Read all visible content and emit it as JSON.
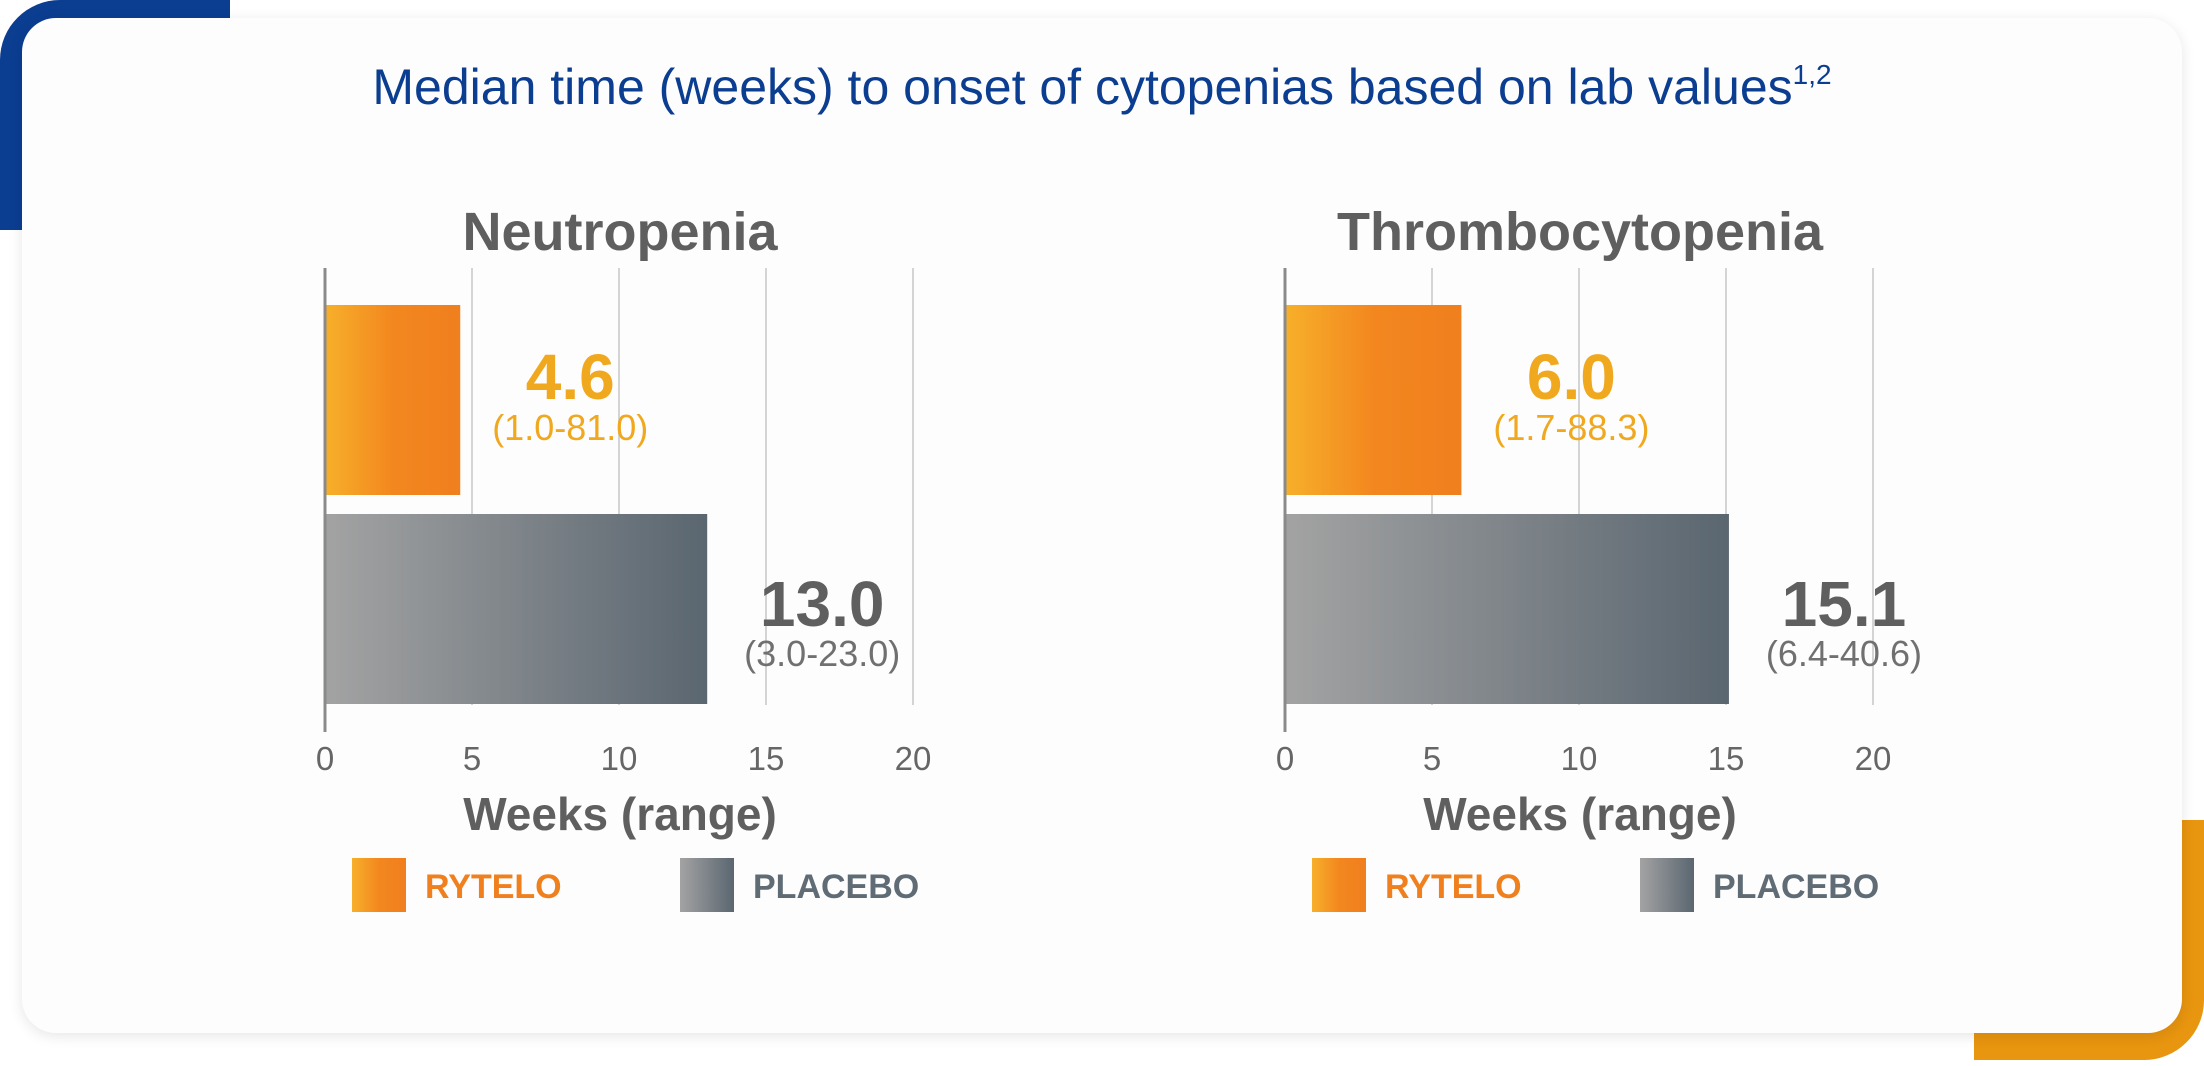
{
  "title": {
    "text": "Median time (weeks) to onset of cytopenias based on lab values",
    "sup": "1,2"
  },
  "colors": {
    "title": "#0b3d91",
    "panel_title": "#5f5f5f",
    "rytelo": "#f07f1e",
    "rytelo_label": "#f0a81e",
    "placebo": "#5f6b75",
    "placebo_value": "#5f5f5f",
    "placebo_range": "#707070",
    "grid": "#d4d4d4",
    "axis": "#8a8a8a"
  },
  "chart_data": [
    {
      "type": "bar",
      "orientation": "horizontal",
      "title": "Neutropenia",
      "xlabel": "Weeks (range)",
      "xlim": [
        0,
        20
      ],
      "xticks": [
        "0",
        "5",
        "10",
        "15",
        "20"
      ],
      "grid": true,
      "series": [
        {
          "name": "RYTELO",
          "value": 4.6,
          "label": "4.6",
          "range": "(1.0-81.0)"
        },
        {
          "name": "PLACEBO",
          "value": 13.0,
          "label": "13.0",
          "range": "(3.0-23.0)"
        }
      ],
      "legend": {
        "position": "bottom",
        "items": [
          "RYTELO",
          "PLACEBO"
        ]
      }
    },
    {
      "type": "bar",
      "orientation": "horizontal",
      "title": "Thrombocytopenia",
      "xlabel": "Weeks (range)",
      "xlim": [
        0,
        20
      ],
      "xticks": [
        "0",
        "5",
        "10",
        "15",
        "20"
      ],
      "grid": true,
      "series": [
        {
          "name": "RYTELO",
          "value": 6.0,
          "label": "6.0",
          "range": "(1.7-88.3)"
        },
        {
          "name": "PLACEBO",
          "value": 15.1,
          "label": "15.1",
          "range": "(6.4-40.6)"
        }
      ],
      "legend": {
        "position": "bottom",
        "items": [
          "RYTELO",
          "PLACEBO"
        ]
      }
    }
  ]
}
